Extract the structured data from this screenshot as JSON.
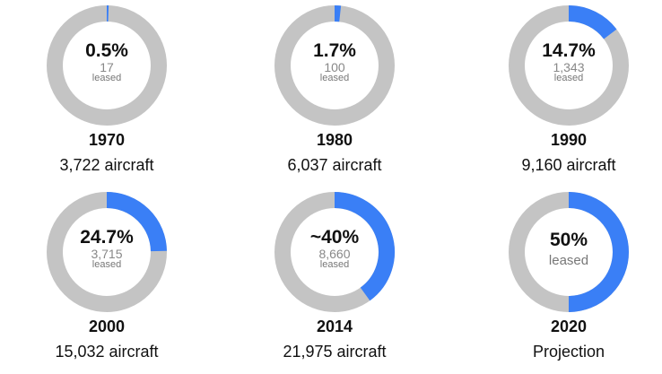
{
  "chart_data": {
    "type": "donut",
    "colors": {
      "leased": "#3a7ff6",
      "remainder": "#c4c4c4"
    },
    "items": [
      {
        "year": "1970",
        "percent": 0.5,
        "percent_label": "0.5%",
        "count_label": "17",
        "leased_label": "leased",
        "subtitle": "3,722 aircraft"
      },
      {
        "year": "1980",
        "percent": 1.7,
        "percent_label": "1.7%",
        "count_label": "100",
        "leased_label": "leased",
        "subtitle": "6,037 aircraft"
      },
      {
        "year": "1990",
        "percent": 14.7,
        "percent_label": "14.7%",
        "count_label": "1,343",
        "leased_label": "leased",
        "subtitle": "9,160 aircraft"
      },
      {
        "year": "2000",
        "percent": 24.7,
        "percent_label": "24.7%",
        "count_label": "3,715",
        "leased_label": "leased",
        "subtitle": "15,032 aircraft"
      },
      {
        "year": "2014",
        "percent": 40,
        "percent_label": "~40%",
        "count_label": "8,660",
        "leased_label": "leased",
        "subtitle": "21,975 aircraft"
      },
      {
        "year": "2020",
        "percent": 50,
        "percent_label": "50%",
        "count_label": "",
        "leased_label": "leased",
        "subtitle": "Projection"
      }
    ]
  }
}
